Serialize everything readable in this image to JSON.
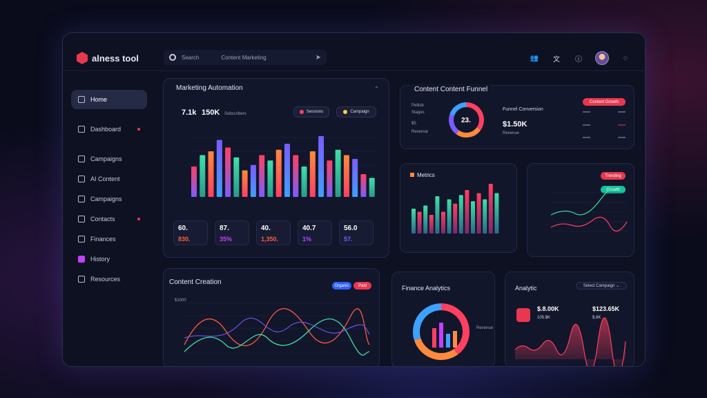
{
  "app": {
    "name": "alness tool"
  },
  "search": {
    "placeholder": "Search",
    "tab2": "Content Marketing"
  },
  "sidebar": {
    "items": [
      {
        "label": "Home",
        "active": true
      },
      {
        "label": "Dashboard",
        "dot": true
      },
      {
        "label": "Campaigns"
      },
      {
        "label": "AI Content"
      },
      {
        "label": "Campaigns"
      },
      {
        "label": "Contacts",
        "dot": true
      },
      {
        "label": "Finances"
      },
      {
        "label": "History"
      },
      {
        "label": "Resources"
      }
    ]
  },
  "marketing": {
    "title": "Marketing Automation",
    "val1": "7.1k",
    "val2": "150K",
    "val3": "Subscribers",
    "legend1": "Sessions",
    "legend2": "Campaign",
    "stats": [
      {
        "v1": "60.",
        "v2": "830.",
        "c2": "#ff5a3c"
      },
      {
        "v1": "87.",
        "v2": "35%",
        "c2": "#c040ff"
      },
      {
        "v1": "40.",
        "v2": "1,350.",
        "c2": "#ff5a3c"
      },
      {
        "v1": "40.7",
        "v2": "1%",
        "c2": "#c040ff"
      },
      {
        "v1": "56.0",
        "v2": "57.",
        "c2": "#7060ff"
      }
    ]
  },
  "content_funnel": {
    "title": "Content Content Funnel",
    "pill": "Content Growth",
    "donut_label": "23.",
    "center_title": "Funnel Conversion",
    "center_value": "$1.50K",
    "center_sub": "Revenue"
  },
  "metrics": {
    "title": "Metrics"
  },
  "trend": {
    "pill": "Trending",
    "pill2": "Growth"
  },
  "creation": {
    "title": "Content Creation",
    "pill1": "Organic",
    "pill2": "Paid",
    "ylabel": "$1000"
  },
  "finance": {
    "title": "Finance Analytics",
    "legend": "Revenue"
  },
  "analytic": {
    "title": "Analytic",
    "dropdown": "Select Campaign",
    "v1": "$.8.00K",
    "v2": "$123.65K",
    "v3": "105.$K",
    "v4": "$.8K"
  },
  "colors": {
    "accent": "#e8384f",
    "teal": "#3ee0a8",
    "purple": "#7a5cff"
  },
  "chart_data": [
    {
      "type": "bar",
      "title": "Marketing Automation",
      "values": [
        40,
        55,
        60,
        75,
        65,
        52,
        35,
        42,
        55,
        48,
        62,
        70,
        55,
        40,
        60,
        80,
        48,
        62,
        55,
        50,
        30,
        25
      ],
      "colors": [
        "#ff4060",
        "#3ee0a8",
        "#7a5cff",
        "#ffb040"
      ]
    },
    {
      "type": "bar",
      "title": "Metrics",
      "values": [
        40,
        35,
        45,
        30,
        60,
        35,
        55,
        48,
        62,
        70,
        52,
        65,
        55,
        80,
        65
      ]
    },
    {
      "type": "pie",
      "title": "Content Funnel",
      "values": [
        35,
        25,
        20,
        20
      ],
      "colors": [
        "#ff4060",
        "#ff8a3c",
        "#7a5cff",
        "#3ea0ff"
      ]
    },
    {
      "type": "pie",
      "title": "Finance Analytics",
      "values": [
        40,
        30,
        30
      ],
      "colors": [
        "#ff4060",
        "#ff8a3c",
        "#3ea0ff"
      ]
    }
  ]
}
